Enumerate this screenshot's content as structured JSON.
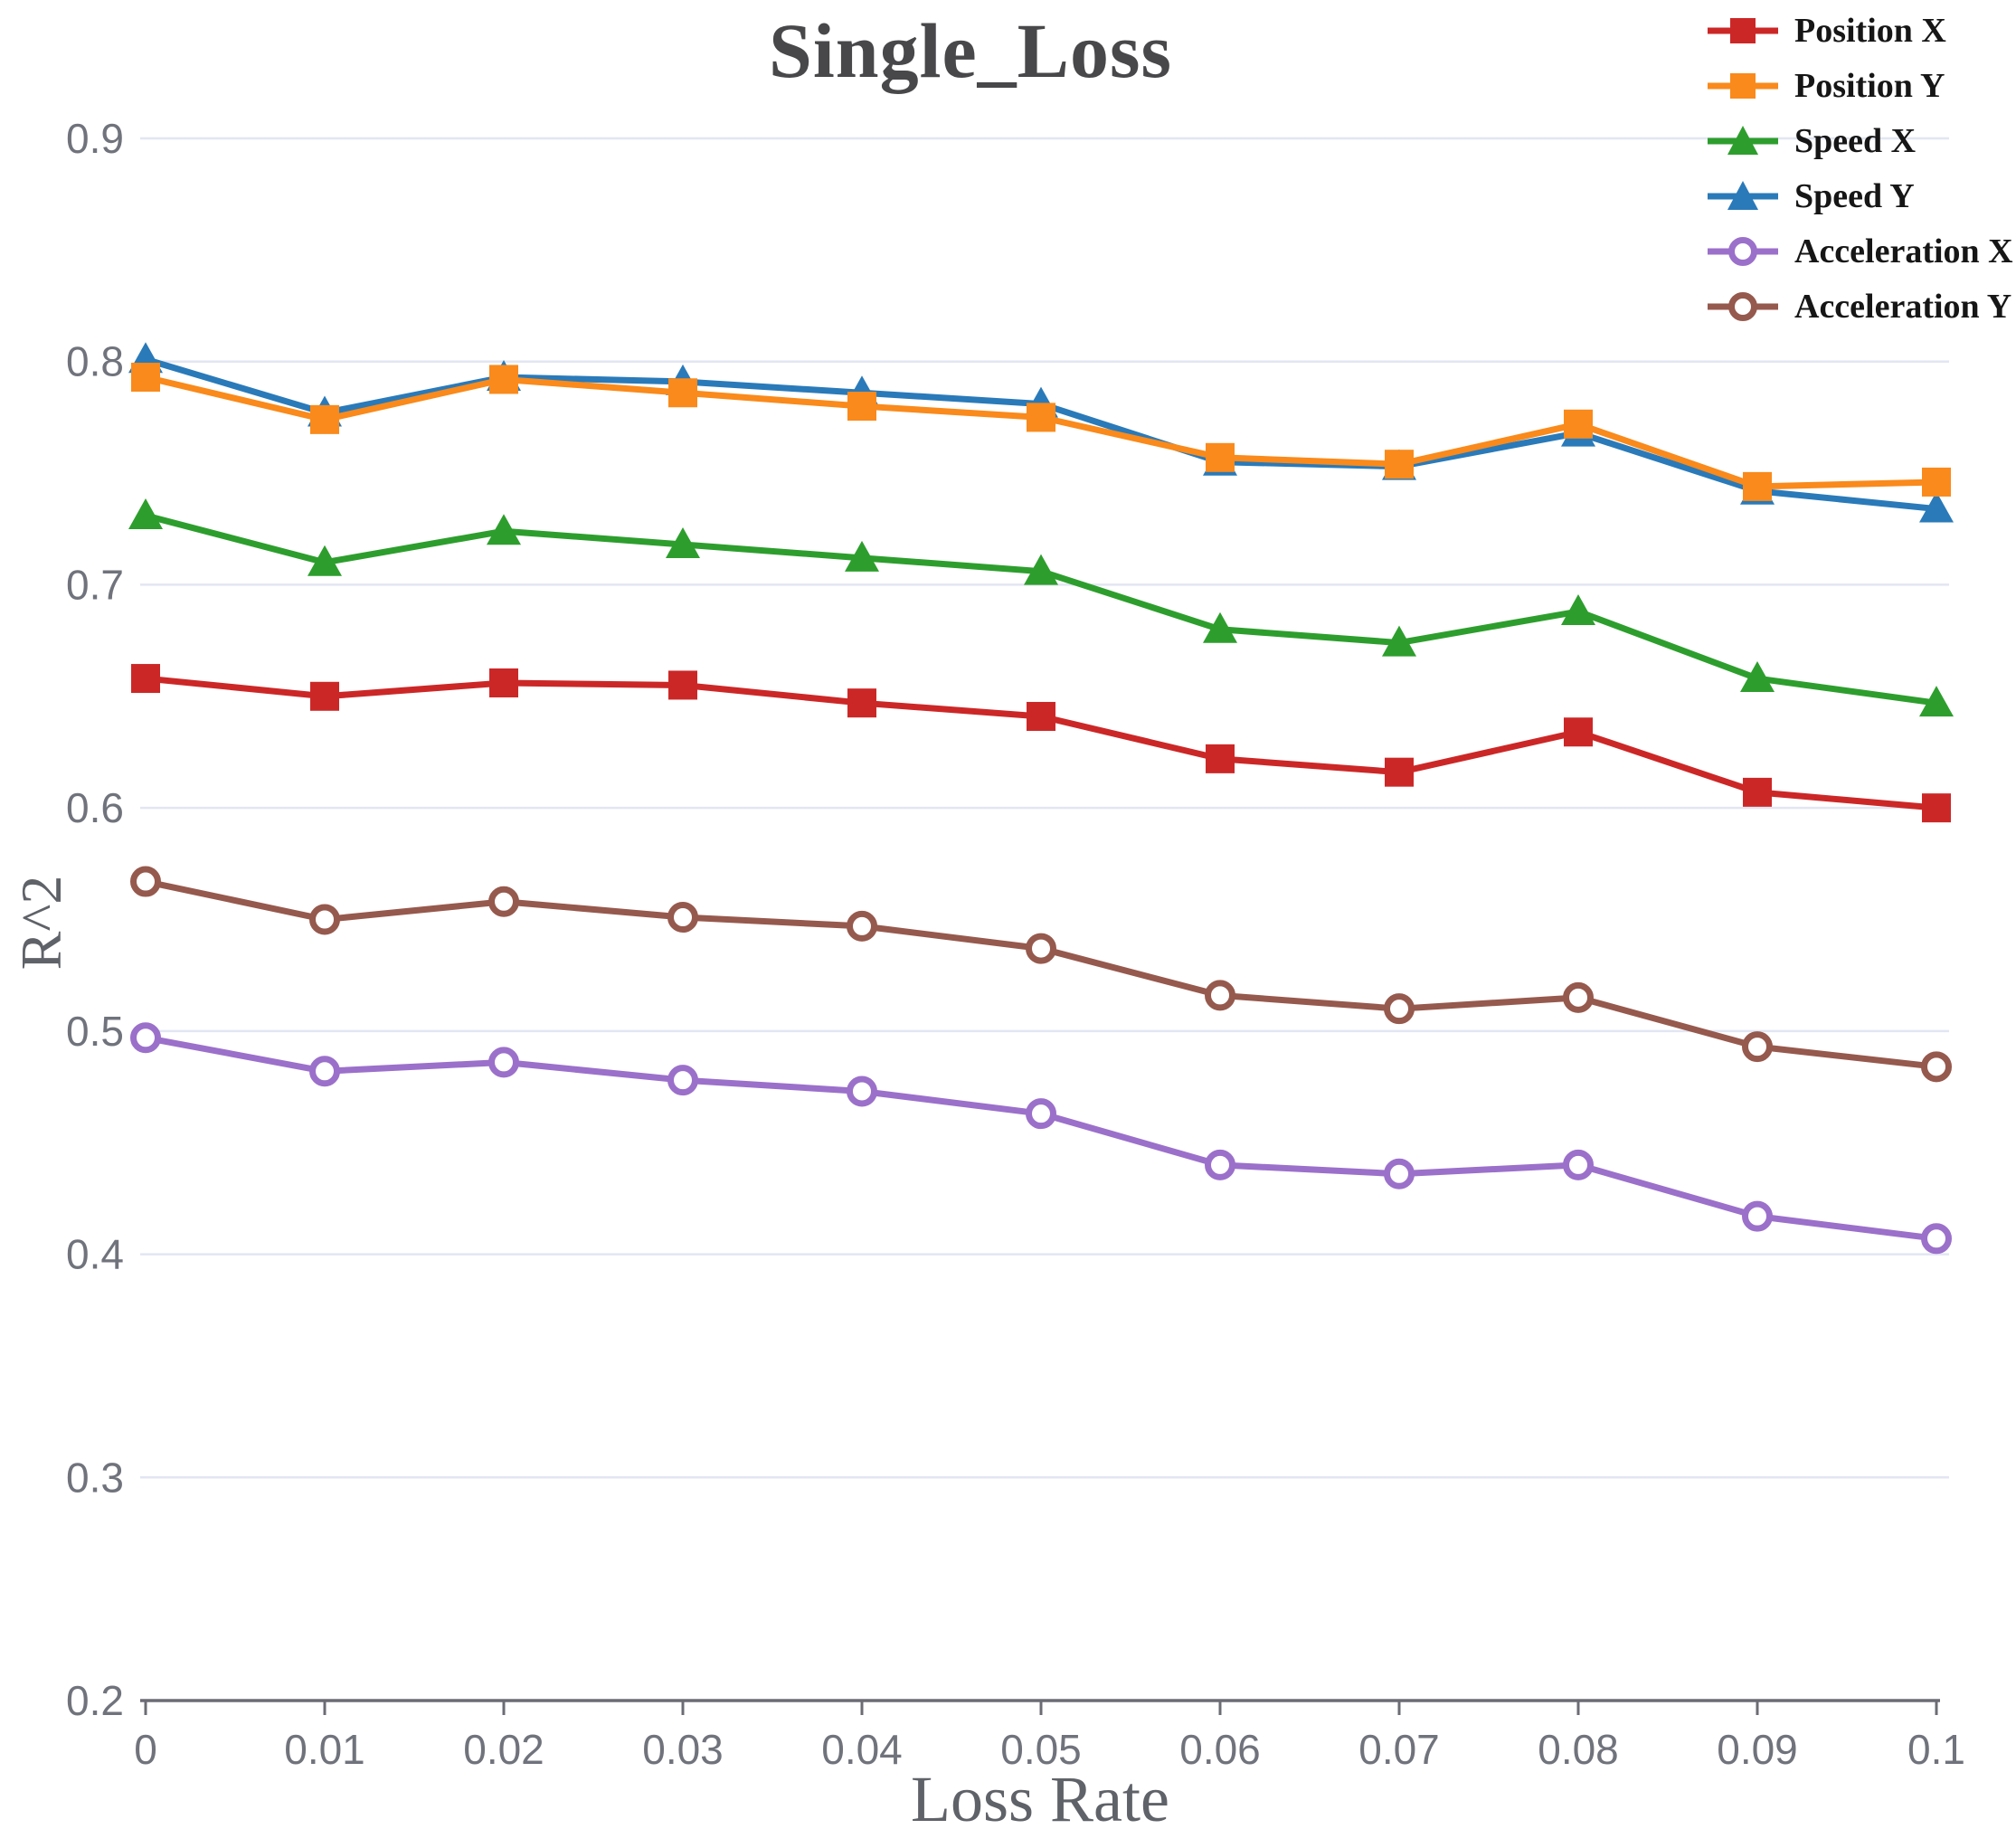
{
  "chart_data": {
    "type": "line",
    "title": "Single_Loss",
    "xlabel": "Loss Rate",
    "ylabel": "R^2",
    "x": [
      0,
      0.01,
      0.02,
      0.03,
      0.04,
      0.05,
      0.06,
      0.07,
      0.08,
      0.09,
      0.1
    ],
    "x_tick_labels": [
      "0",
      "0.01",
      "0.02",
      "0.03",
      "0.04",
      "0.05",
      "0.06",
      "0.07",
      "0.08",
      "0.09",
      "0.1"
    ],
    "y_ticks": [
      0.2,
      0.3,
      0.4,
      0.5,
      0.6,
      0.7,
      0.8,
      0.9
    ],
    "y_tick_labels": [
      "0.2",
      "0.3",
      "0.4",
      "0.5",
      "0.6",
      "0.7",
      "0.8",
      "0.9"
    ],
    "ylim": [
      0.2,
      0.9
    ],
    "grid": true,
    "legend_position": "top-right",
    "series": [
      {
        "name": "Position X",
        "color": "#cc2727",
        "marker": "square",
        "values": [
          0.658,
          0.65,
          0.656,
          0.655,
          0.647,
          0.641,
          0.622,
          0.616,
          0.634,
          0.607,
          0.6
        ]
      },
      {
        "name": "Position Y",
        "color": "#f98a1b",
        "marker": "square",
        "values": [
          0.793,
          0.774,
          0.792,
          0.786,
          0.78,
          0.775,
          0.757,
          0.754,
          0.772,
          0.744,
          0.746
        ]
      },
      {
        "name": "Speed X",
        "color": "#2d9e2d",
        "marker": "triangle",
        "values": [
          0.731,
          0.71,
          0.724,
          0.718,
          0.712,
          0.706,
          0.68,
          0.674,
          0.688,
          0.658,
          0.647
        ]
      },
      {
        "name": "Speed Y",
        "color": "#2a7ab9",
        "marker": "triangle",
        "values": [
          0.801,
          0.777,
          0.793,
          0.791,
          0.786,
          0.781,
          0.755,
          0.753,
          0.768,
          0.742,
          0.734
        ]
      },
      {
        "name": "Acceleration X",
        "color": "#9b70ca",
        "marker": "circle-open",
        "values": [
          0.497,
          0.482,
          0.486,
          0.478,
          0.473,
          0.463,
          0.44,
          0.436,
          0.44,
          0.417,
          0.407
        ]
      },
      {
        "name": "Acceleration Y",
        "color": "#96594d",
        "marker": "circle-open",
        "values": [
          0.567,
          0.55,
          0.558,
          0.551,
          0.547,
          0.537,
          0.516,
          0.51,
          0.515,
          0.493,
          0.484
        ]
      }
    ],
    "colors": {
      "gridline": "#e2e6f2",
      "axis_line": "#6b6c74",
      "tick_label": "#70737c",
      "axis_title": "#5f6268",
      "title": "#48484b",
      "legend_text": "#161616",
      "background": "#ffffff"
    }
  }
}
